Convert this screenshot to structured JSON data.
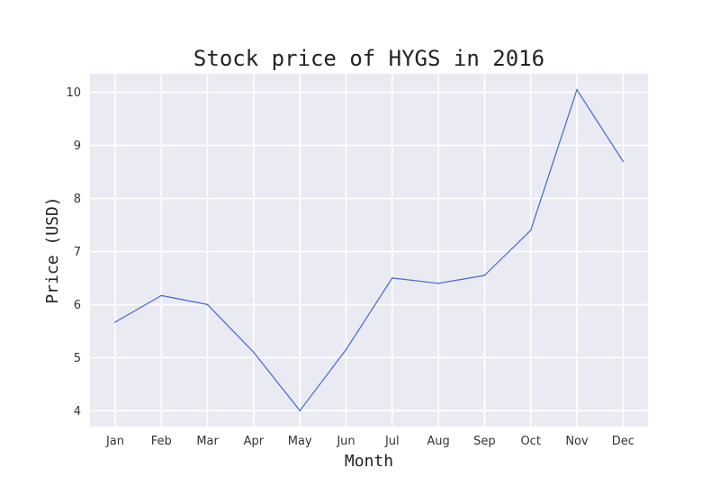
{
  "chart_data": {
    "type": "line",
    "title": "Stock price of HYGS in 2016",
    "xlabel": "Month",
    "ylabel": "Price (USD)",
    "categories": [
      "Jan",
      "Feb",
      "Mar",
      "Apr",
      "May",
      "Jun",
      "Jul",
      "Aug",
      "Sep",
      "Oct",
      "Nov",
      "Dec"
    ],
    "series": [
      {
        "values": [
          5.67,
          6.17,
          6.0,
          5.1,
          4.0,
          5.15,
          6.5,
          6.4,
          6.55,
          7.4,
          10.05,
          8.7
        ]
      }
    ],
    "ylim": [
      3.7,
      10.35
    ],
    "yticks": [
      4,
      5,
      6,
      7,
      8,
      9,
      10
    ],
    "grid": true,
    "colors": {
      "line": "#4169d4",
      "plot_background": "#eaeaf2",
      "grid": "#ffffff"
    }
  }
}
